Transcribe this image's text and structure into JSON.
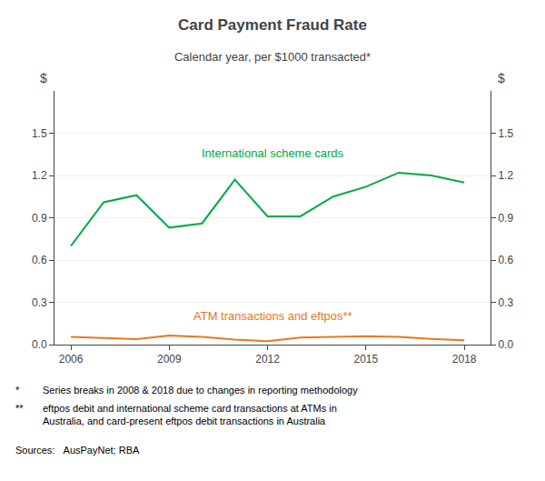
{
  "chart_data": {
    "type": "line",
    "title": "Card Payment Fraud Rate",
    "subtitle": "Calendar year, per $1000 transacted*",
    "ylabel": "$",
    "y2label": "$",
    "x": [
      2006,
      2007,
      2008,
      2009,
      2010,
      2011,
      2012,
      2013,
      2014,
      2015,
      2016,
      2017,
      2018
    ],
    "series": [
      {
        "name": "International scheme cards",
        "color": "#00AA44",
        "values": [
          0.7,
          1.01,
          1.06,
          0.83,
          0.86,
          1.17,
          0.91,
          0.91,
          1.05,
          1.12,
          1.22,
          1.2,
          1.15
        ]
      },
      {
        "name": "ATM transactions and eftpos**",
        "color": "#E87722",
        "values": [
          0.055,
          0.045,
          0.038,
          0.065,
          0.055,
          0.035,
          0.025,
          0.05,
          0.055,
          0.06,
          0.055,
          0.04,
          0.03
        ]
      }
    ],
    "xlim": [
      2005.5,
      2018.8
    ],
    "xticks": [
      2006,
      2009,
      2012,
      2015,
      2018
    ],
    "ylim": [
      0.0,
      1.8
    ],
    "yticks": [
      {
        "value": 0.0,
        "label": "0.0"
      },
      0.3,
      0.6,
      0.9,
      1.2,
      1.5
    ],
    "y2lim": [
      0.0,
      1.8
    ],
    "y2ticks": [
      {
        "value": 0.0,
        "label": "0.0"
      },
      0.3,
      0.6,
      0.9,
      1.2,
      1.5
    ],
    "grid": true,
    "footnotes": [
      {
        "marker": "*",
        "text": "Series breaks in 2008 & 2018 due to changes in reporting methodology"
      },
      {
        "marker": "**",
        "text": "eftpos debit and international scheme card transactions at ATMs in\nAustralia, and card-present eftpos debit transactions in Australia"
      }
    ],
    "sources": "Sources:   AusPayNet; RBA"
  }
}
